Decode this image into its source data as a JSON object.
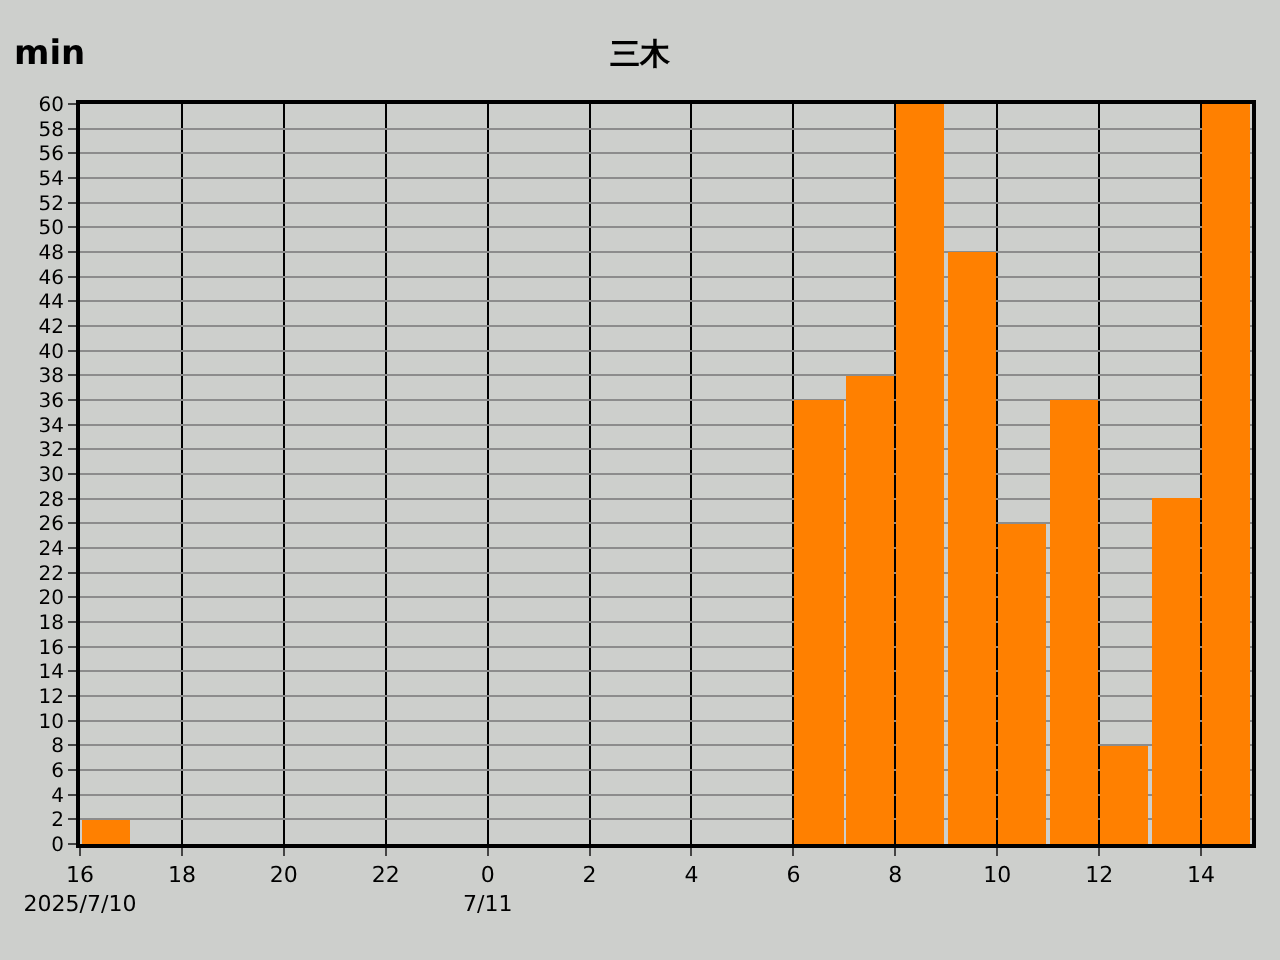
{
  "chart_data": {
    "type": "bar",
    "title": "三木",
    "ylabel": "min",
    "x": [
      "2025-07-10T16:30",
      "2025-07-10T17:30",
      "2025-07-10T18:30",
      "2025-07-10T19:30",
      "2025-07-10T20:30",
      "2025-07-10T21:30",
      "2025-07-10T22:30",
      "2025-07-10T23:30",
      "2025-07-11T00:30",
      "2025-07-11T01:30",
      "2025-07-11T02:30",
      "2025-07-11T03:30",
      "2025-07-11T04:30",
      "2025-07-11T05:30",
      "2025-07-11T06:30",
      "2025-07-11T07:30",
      "2025-07-11T08:30",
      "2025-07-11T09:30",
      "2025-07-11T10:30",
      "2025-07-11T11:30",
      "2025-07-11T12:30",
      "2025-07-11T13:30",
      "2025-07-11T14:30"
    ],
    "values": [
      2,
      0,
      0,
      0,
      0,
      0,
      0,
      0,
      0,
      0,
      0,
      0,
      0,
      0,
      36,
      38,
      60,
      48,
      26,
      36,
      8,
      28,
      60
    ],
    "color": "#ff8000",
    "xlim": [
      "2025-07-10T16:00",
      "2025-07-11T15:00"
    ],
    "xticks": [
      {
        "value": "2025-07-10T16:00",
        "label": "16\n2025/7/10"
      },
      {
        "value": "2025-07-10T18:00",
        "label": "18"
      },
      {
        "value": "2025-07-10T20:00",
        "label": "20"
      },
      {
        "value": "2025-07-10T22:00",
        "label": "22"
      },
      {
        "value": "2025-07-11T00:00",
        "label": "0\n7/11"
      },
      {
        "value": "2025-07-11T02:00",
        "label": "2"
      },
      {
        "value": "2025-07-11T04:00",
        "label": "4"
      },
      {
        "value": "2025-07-11T06:00",
        "label": "6"
      },
      {
        "value": "2025-07-11T08:00",
        "label": "8"
      },
      {
        "value": "2025-07-11T10:00",
        "label": "10"
      },
      {
        "value": "2025-07-11T12:00",
        "label": "12"
      },
      {
        "value": "2025-07-11T14:00",
        "label": "14"
      }
    ],
    "ylim": [
      0,
      60
    ],
    "yticks": [
      0,
      2,
      4,
      6,
      8,
      10,
      12,
      14,
      16,
      18,
      20,
      22,
      24,
      26,
      28,
      30,
      32,
      34,
      36,
      38,
      40,
      42,
      44,
      46,
      48,
      50,
      52,
      54,
      56,
      58,
      60
    ],
    "grid": true
  }
}
